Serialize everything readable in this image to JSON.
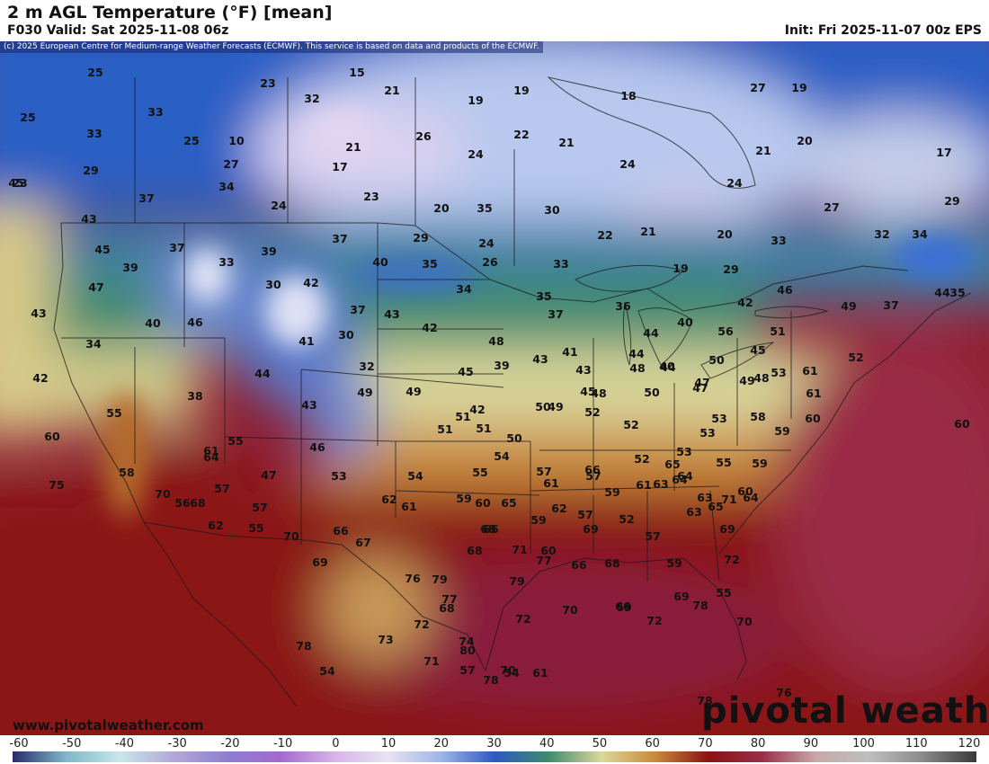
{
  "header": {
    "title": "2 m AGL Temperature (°F) [mean]",
    "valid": "F030 Valid: Sat 2025-11-08 06z",
    "init": "Init: Fri 2025-11-07 00z EPS"
  },
  "map": {
    "copyright": "(c) 2025 European Centre for Medium-range Weather Forecasts (ECMWF). This service is based on data and products of the ECMWF.",
    "website": "www.pivotalweather.com",
    "logo": "pivotal weather",
    "temperature_labels": [
      "25",
      "15",
      "23",
      "21",
      "19",
      "19",
      "18",
      "27",
      "19",
      "32",
      "33",
      "25",
      "33",
      "25",
      "10",
      "21",
      "26",
      "22",
      "21",
      "20",
      "17",
      "45",
      "29",
      "27",
      "17",
      "24",
      "23",
      "24",
      "20",
      "37",
      "34",
      "23",
      "35",
      "30",
      "21",
      "24",
      "24",
      "29",
      "43",
      "27",
      "45",
      "37",
      "39",
      "37",
      "29",
      "24",
      "22",
      "21",
      "20",
      "33",
      "32",
      "34",
      "39",
      "33",
      "40",
      "35",
      "26",
      "33",
      "19",
      "29",
      "47",
      "30",
      "42",
      "34",
      "35",
      "44",
      "46",
      "43",
      "37",
      "43",
      "36",
      "37",
      "35",
      "42",
      "49",
      "46",
      "40",
      "34",
      "40",
      "37",
      "41",
      "30",
      "32",
      "42",
      "42",
      "51",
      "56",
      "44",
      "48",
      "39",
      "43",
      "41",
      "43",
      "44",
      "48",
      "40",
      "50",
      "45",
      "52",
      "47",
      "38",
      "44",
      "42",
      "45",
      "45",
      "48",
      "44",
      "50",
      "49",
      "53",
      "49",
      "43",
      "49",
      "61",
      "50",
      "51",
      "48",
      "51",
      "51",
      "49",
      "47",
      "52",
      "52",
      "60",
      "55",
      "53",
      "58",
      "55",
      "60",
      "61",
      "50",
      "52",
      "53",
      "59",
      "46",
      "61",
      "64",
      "58",
      "47",
      "53",
      "54",
      "54",
      "55",
      "57",
      "60",
      "55",
      "53",
      "59",
      "57",
      "61",
      "59",
      "61",
      "64",
      "75",
      "70",
      "68",
      "57",
      "56",
      "62",
      "57",
      "62",
      "61",
      "59",
      "60",
      "65",
      "60",
      "71",
      "63",
      "66",
      "62",
      "65",
      "63",
      "64",
      "57",
      "55",
      "69",
      "52",
      "57",
      "59",
      "63",
      "64",
      "65",
      "69",
      "66",
      "66",
      "67",
      "68",
      "71",
      "60",
      "68",
      "70",
      "69",
      "76",
      "79",
      "79",
      "77",
      "66",
      "68",
      "59",
      "72",
      "70",
      "69",
      "66",
      "72",
      "78",
      "55",
      "69",
      "72",
      "68",
      "70",
      "72",
      "77",
      "74",
      "73",
      "71",
      "54",
      "61",
      "80",
      "57",
      "70",
      "78",
      "78",
      "76",
      "54",
      "78"
    ]
  },
  "colorbar": {
    "ticks": [
      "-60",
      "-50",
      "-40",
      "-30",
      "-20",
      "-10",
      "0",
      "10",
      "20",
      "30",
      "40",
      "50",
      "60",
      "70",
      "80",
      "90",
      "100",
      "110",
      "120"
    ],
    "min": -60,
    "max": 120,
    "stops": [
      {
        "value": -60,
        "color": "#2b2b6b"
      },
      {
        "value": -50,
        "color": "#7fb8c8"
      },
      {
        "value": -40,
        "color": "#c8e6ea"
      },
      {
        "value": -30,
        "color": "#b3a9d9"
      },
      {
        "value": -20,
        "color": "#8e7fcf"
      },
      {
        "value": -10,
        "color": "#a26ad0"
      },
      {
        "value": 0,
        "color": "#d8b3e8"
      },
      {
        "value": 10,
        "color": "#e8e3f2"
      },
      {
        "value": 20,
        "color": "#9fb6e8"
      },
      {
        "value": 30,
        "color": "#2f59c2"
      },
      {
        "value": 40,
        "color": "#3f8a6e"
      },
      {
        "value": 50,
        "color": "#dcd89a"
      },
      {
        "value": 60,
        "color": "#c98a3c"
      },
      {
        "value": 70,
        "color": "#8a1212"
      },
      {
        "value": 80,
        "color": "#9a2f4a"
      },
      {
        "value": 90,
        "color": "#c8a8a8"
      },
      {
        "value": 100,
        "color": "#bfbfbf"
      },
      {
        "value": 110,
        "color": "#8a8a8a"
      },
      {
        "value": 120,
        "color": "#3a3a3a"
      }
    ]
  }
}
